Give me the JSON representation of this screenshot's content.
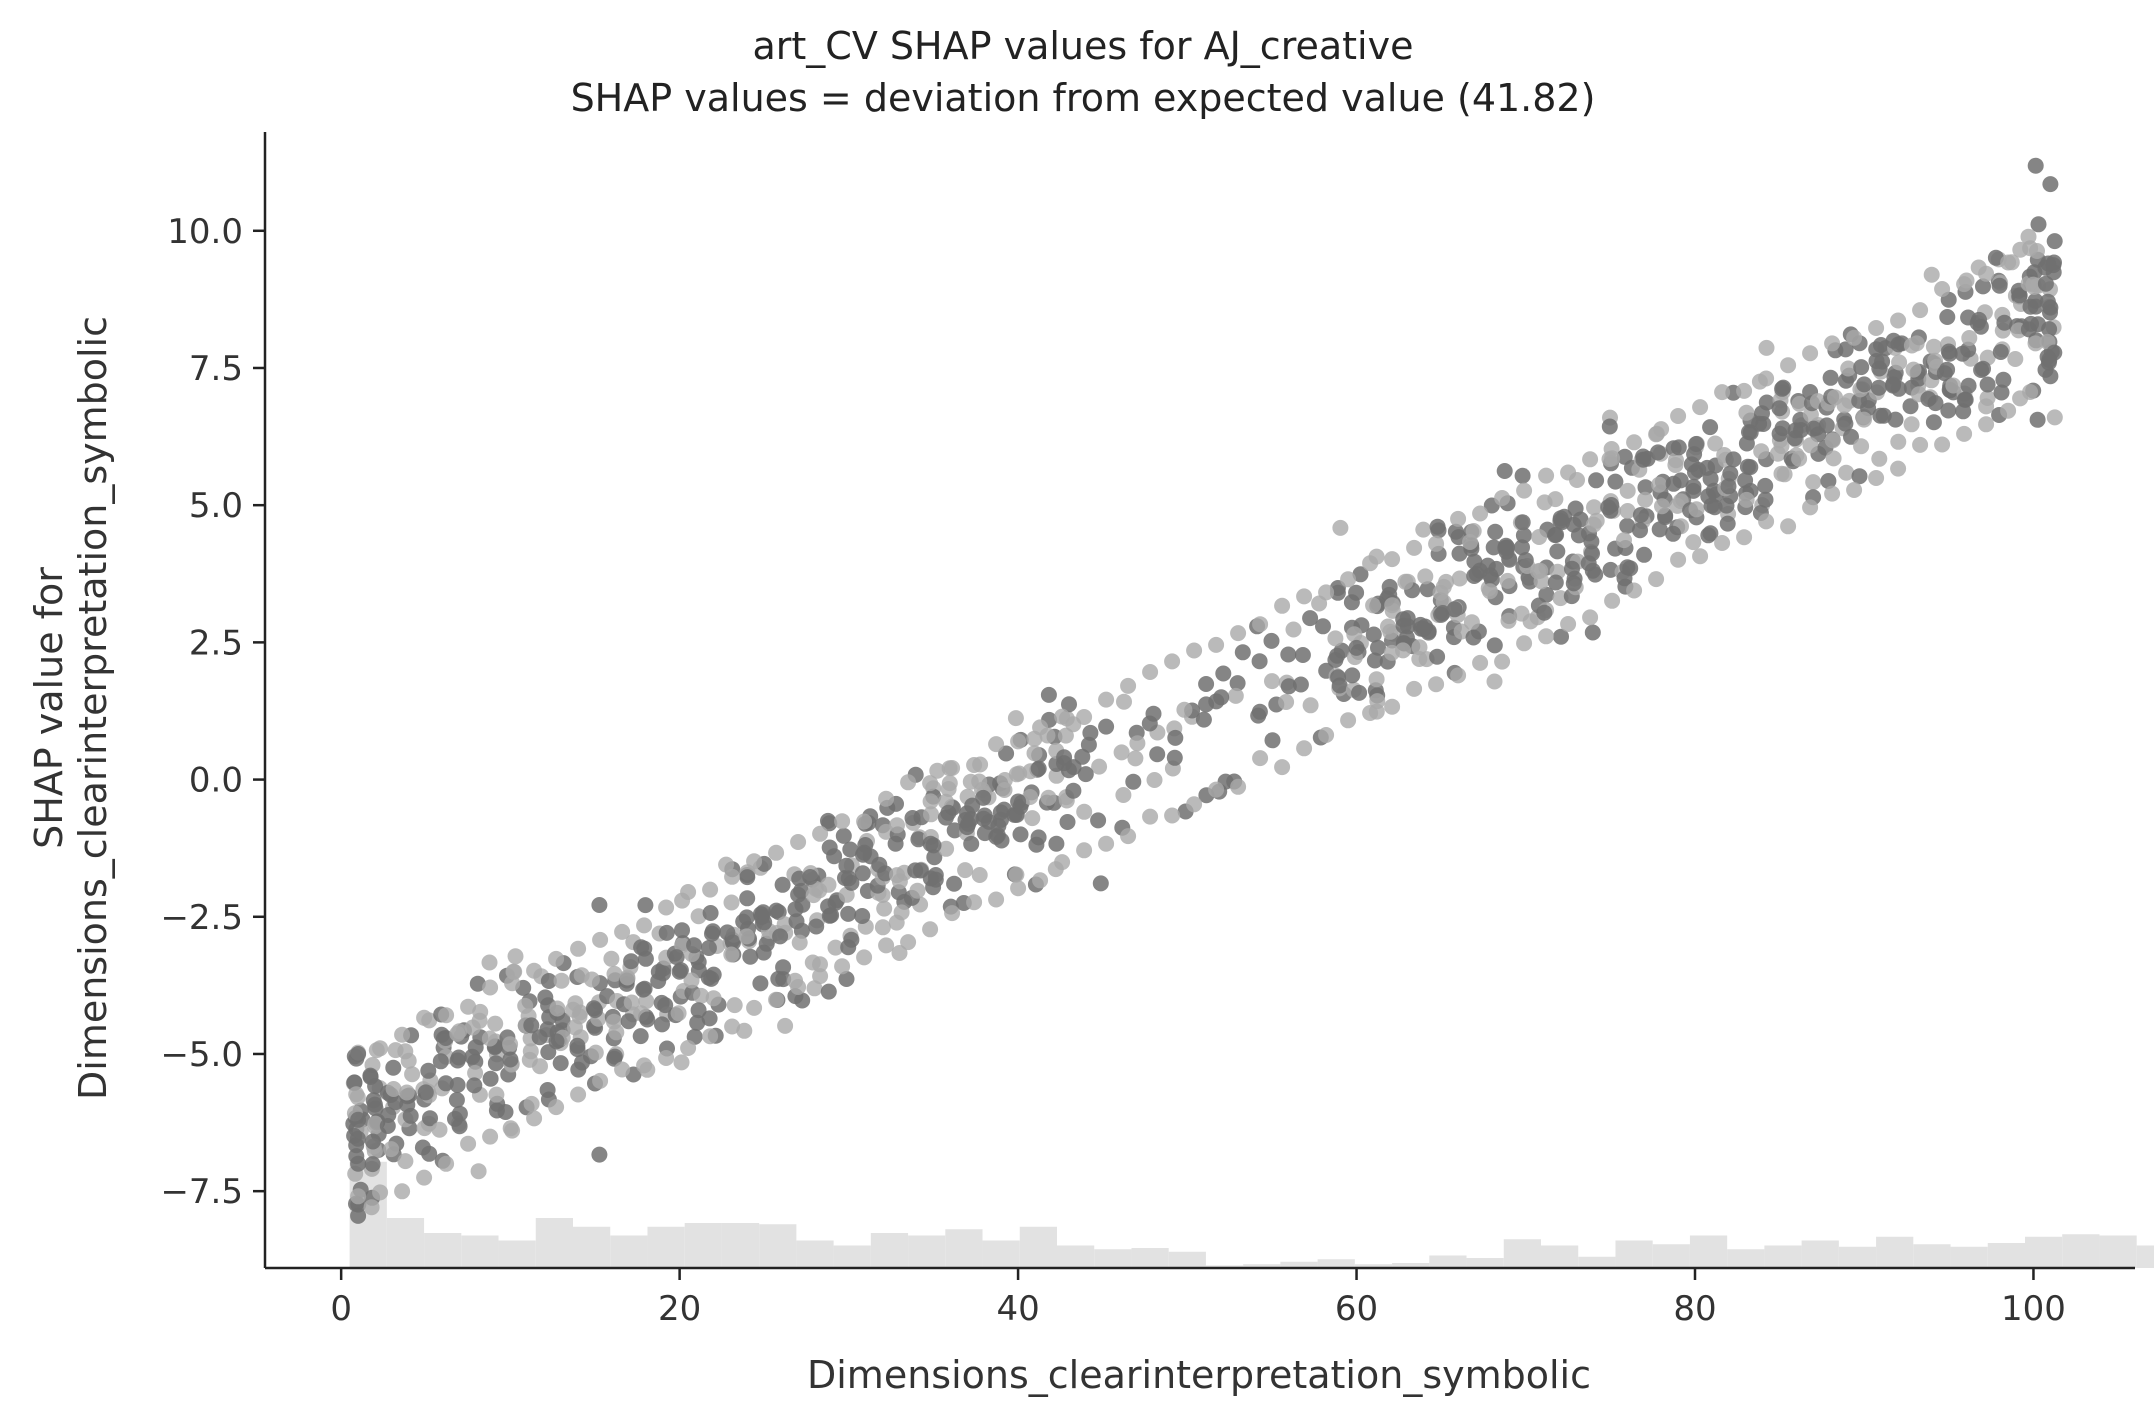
{
  "chart_data": {
    "type": "scatter",
    "title": "art_CV SHAP values for AJ_creative",
    "subtitle": "SHAP values = deviation from expected value (41.82)",
    "xlabel": "Dimensions_clearinterpretation_symbolic",
    "ylabel_line1": "SHAP value for",
    "ylabel_line2": "Dimensions_clearinterpretation_symbolic",
    "xlim": [
      -4.5,
      106
    ],
    "ylim": [
      -8.9,
      11.8
    ],
    "xticks": [
      0,
      20,
      40,
      60,
      80,
      100
    ],
    "xtick_labels": [
      "0",
      "20",
      "40",
      "60",
      "80",
      "100"
    ],
    "yticks": [
      -7.5,
      -5.0,
      -2.5,
      0.0,
      2.5,
      5.0,
      7.5,
      10.0
    ],
    "ytick_labels": [
      "−7.5",
      "−5.0",
      "−2.5",
      "0.0",
      "2.5",
      "5.0",
      "7.5",
      "10.0"
    ],
    "trend": {
      "description": "approximately linear relationship between feature value and SHAP value",
      "x": [
        1,
        101
      ],
      "y_center": [
        -6.3,
        8.6
      ],
      "y_spread": 1.3
    },
    "scatter_sample": {
      "x": [
        1,
        1,
        1,
        1,
        5,
        10,
        15,
        20,
        25,
        30,
        35,
        40,
        44,
        48,
        52,
        56,
        60,
        65,
        70,
        75,
        80,
        85,
        90,
        95,
        98,
        101,
        101,
        101
      ],
      "y": [
        -7.95,
        -5.0,
        -6.2,
        -7.0,
        -5.7,
        -5.1,
        -4.2,
        -3.5,
        -2.6,
        -1.8,
        -1.2,
        -0.4,
        0.1,
        1.2,
        1.5,
        1.7,
        2.4,
        3.0,
        4.0,
        4.9,
        5.6,
        6.3,
        7.2,
        7.8,
        9.0,
        10.85,
        7.35,
        8.6
      ]
    },
    "histogram": {
      "bin_edges_start": 0.5,
      "bin_width": 2.2,
      "relative_heights": [
        0.85,
        0.4,
        0.28,
        0.26,
        0.22,
        0.4,
        0.33,
        0.26,
        0.33,
        0.36,
        0.36,
        0.35,
        0.22,
        0.18,
        0.28,
        0.26,
        0.31,
        0.22,
        0.33,
        0.18,
        0.15,
        0.16,
        0.13,
        0.02,
        0.03,
        0.05,
        0.07,
        0.03,
        0.04,
        0.1,
        0.08,
        0.23,
        0.18,
        0.09,
        0.22,
        0.19,
        0.26,
        0.15,
        0.18,
        0.22,
        0.17,
        0.25,
        0.19,
        0.17,
        0.2,
        0.25,
        0.27,
        0.26,
        0.18,
        0.12,
        0.4
      ],
      "color": "#e2e2e2"
    },
    "colors": {
      "points": "#707070",
      "points_light": "#a9a9a9",
      "histogram": "#e2e2e2",
      "axis": "#222222"
    },
    "grid": false,
    "legend": "none"
  }
}
